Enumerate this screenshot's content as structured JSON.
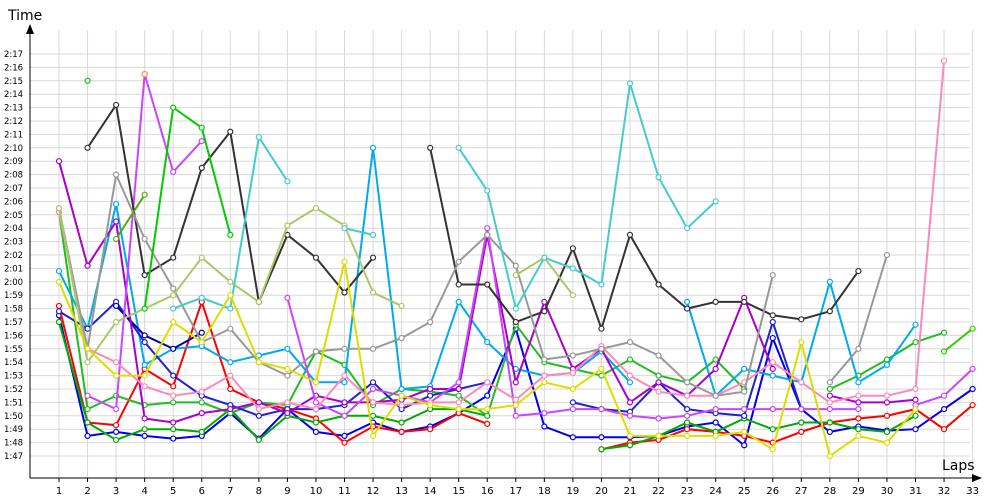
{
  "chart_data": {
    "type": "line",
    "title": "",
    "xlabel": "Laps",
    "ylabel": "Time",
    "x": [
      1,
      2,
      3,
      4,
      5,
      6,
      7,
      8,
      9,
      10,
      11,
      12,
      13,
      14,
      15,
      16,
      17,
      18,
      19,
      20,
      21,
      22,
      23,
      24,
      25,
      26,
      27,
      28,
      29,
      30,
      31,
      32,
      33
    ],
    "yticks": [
      "1:47",
      "1:48",
      "1:49",
      "1:50",
      "1:51",
      "1:52",
      "1:53",
      "1:54",
      "1:55",
      "1:56",
      "1:57",
      "1:58",
      "1:59",
      "2:00",
      "2:01",
      "2:02",
      "2:03",
      "2:04",
      "2:05",
      "2:06",
      "2:07",
      "2:08",
      "2:09",
      "2:10",
      "2:11",
      "2:12",
      "2:13",
      "2:14",
      "2:15",
      "2:16",
      "2:17"
    ],
    "y_unit": "seconds",
    "ylim": [
      106,
      138
    ],
    "grid": true,
    "legend": "none",
    "series": [
      {
        "color": "#0000ee",
        "values": [
          117.5,
          108.5,
          108.8,
          108.5,
          108.3,
          108.5,
          110.2,
          108.3,
          110.5,
          108.8,
          108.5,
          109.5,
          108.8,
          109.2,
          110.2,
          111.5,
          116.5,
          109.2,
          108.4,
          108.4,
          108.4,
          108.5,
          109.2,
          109.5,
          107.8,
          115.8,
          110.5,
          108.8,
          109.2,
          108.9,
          109.0,
          110.5,
          112.0
        ]
      },
      {
        "color": "#ff0000",
        "values": [
          118.2,
          109.5,
          109.3,
          113.5,
          112.2,
          118.5,
          112.0,
          111.0,
          110.5,
          109.8,
          108.0,
          109.2,
          108.8,
          109.0,
          110.2,
          109.4,
          null,
          null,
          null,
          107.5,
          108.0,
          108.2,
          109.0,
          108.8,
          108.5,
          108.0,
          108.8,
          109.5,
          109.8,
          110.0,
          110.5,
          109.0,
          110.8
        ]
      },
      {
        "color": "#00aa00",
        "values": [
          117.0,
          109.5,
          108.2,
          109.0,
          109.0,
          108.8,
          110.5,
          108.2,
          110.0,
          109.5,
          110.0,
          110.0,
          109.5,
          110.5,
          110.5,
          110.0,
          null,
          null,
          null,
          107.5,
          107.8,
          108.5,
          109.5,
          108.8,
          109.8,
          109.0,
          109.5,
          109.5,
          109.0,
          108.8,
          110.0,
          null,
          null
        ]
      },
      {
        "color": "#22bb22",
        "values": [
          125.2,
          110.5,
          111.5,
          110.8,
          111.0,
          111.0,
          110.2,
          111.0,
          110.8,
          114.8,
          113.8,
          110.8,
          112.0,
          111.8,
          111.5,
          110.0,
          116.8,
          114.0,
          113.5,
          113.0,
          114.2,
          113.0,
          112.5,
          114.2,
          112.0,
          null,
          null,
          112.0,
          113.0,
          114.2,
          115.5,
          116.2,
          null
        ]
      },
      {
        "color": "#33cc00",
        "values": [
          null,
          null,
          null,
          null,
          null,
          null,
          null,
          null,
          null,
          null,
          null,
          null,
          null,
          null,
          null,
          null,
          null,
          null,
          null,
          null,
          null,
          null,
          null,
          null,
          null,
          null,
          null,
          null,
          null,
          null,
          null,
          114.8,
          116.5
        ]
      },
      {
        "color": "#00aaee",
        "values": [
          120.8,
          116.5,
          125.8,
          113.8,
          115.0,
          115.2,
          114.0,
          114.5,
          115.0,
          112.5,
          112.5,
          130.0,
          112.0,
          112.2,
          118.5,
          115.5,
          113.5,
          113.0,
          113.2,
          114.8,
          112.5,
          null,
          118.5,
          111.5,
          113.5,
          113.0,
          112.5,
          120.0,
          112.5,
          113.8,
          116.8,
          null,
          null
        ]
      },
      {
        "color": "#2222cc",
        "values": [
          117.8,
          116.5,
          118.5,
          115.5,
          113.0,
          111.5,
          110.8,
          110.0,
          110.5,
          110.5,
          110.8,
          112.5,
          110.5,
          111.5,
          112.0,
          112.5,
          null,
          null,
          111.0,
          110.5,
          110.3,
          112.5,
          110.5,
          110.2,
          110.0,
          117.0,
          110.5,
          null,
          null,
          null,
          null,
          null,
          null
        ]
      },
      {
        "color": "#0000aa",
        "values": [
          null,
          null,
          118.2,
          116.0,
          115.0,
          116.2,
          null,
          null,
          null,
          null,
          null,
          null,
          null,
          null,
          null,
          null,
          null,
          null,
          null,
          null,
          null,
          null,
          null,
          null,
          null,
          null,
          null,
          null,
          null,
          null,
          null,
          null,
          null
        ]
      },
      {
        "color": "#aa00cc",
        "values": [
          129.0,
          121.2,
          124.5,
          109.8,
          109.5,
          110.2,
          110.5,
          111.0,
          110.2,
          111.5,
          111.0,
          111.0,
          111.2,
          112.0,
          112.0,
          123.5,
          112.5,
          118.5,
          113.5,
          115.0,
          111.0,
          112.5,
          111.5,
          113.5,
          118.8,
          113.5,
          null,
          111.5,
          111.0,
          111.0,
          111.2,
          null,
          null
        ]
      },
      {
        "color": "#cc44ff",
        "values": [
          null,
          111.5,
          110.5,
          135.5,
          128.2,
          130.5,
          null,
          null,
          118.8,
          111.0,
          110.0,
          112.0,
          111.5,
          111.0,
          112.5,
          124.0,
          110.0,
          110.2,
          110.5,
          110.5,
          110.0,
          109.8,
          110.0,
          110.5,
          110.5,
          110.5,
          110.5,
          110.5,
          110.5,
          null,
          110.8,
          111.5,
          113.5
        ]
      },
      {
        "color": "#ff88bb",
        "values": [
          125.2,
          115.0,
          114.0,
          112.2,
          111.5,
          111.8,
          113.0,
          110.5,
          111.0,
          110.5,
          113.0,
          111.0,
          110.8,
          111.0,
          111.0,
          112.5,
          111.2,
          113.0,
          113.2,
          115.2,
          113.0,
          111.8,
          111.5,
          111.5,
          112.5,
          114.0,
          112.5,
          111.0,
          111.5,
          111.5,
          112.0,
          136.5,
          null
        ]
      },
      {
        "color": "#333333",
        "values": [
          null,
          130.0,
          133.2,
          120.5,
          121.8,
          128.5,
          131.2,
          118.5,
          123.5,
          121.8,
          119.2,
          121.8,
          null,
          130.0,
          119.8,
          119.8,
          117.0,
          117.8,
          122.5,
          116.5,
          123.5,
          119.8,
          118.0,
          118.5,
          118.5,
          117.5,
          117.2,
          117.8,
          120.8,
          null,
          null,
          null,
          null
        ]
      },
      {
        "color": "#999999",
        "values": [
          125.5,
          115.0,
          128.0,
          123.2,
          119.5,
          115.5,
          116.5,
          114.0,
          113.0,
          114.8,
          115.0,
          115.0,
          115.8,
          117.0,
          121.5,
          123.5,
          121.2,
          114.2,
          114.5,
          115.0,
          115.5,
          114.5,
          112.5,
          111.5,
          111.8,
          120.5,
          null,
          112.5,
          115.0,
          122.0,
          null,
          null,
          null
        ]
      },
      {
        "color": "#aac866",
        "values": [
          125.5,
          114.0,
          117.0,
          118.0,
          119.0,
          121.8,
          120.0,
          118.5,
          124.2,
          125.5,
          124.2,
          119.2,
          118.2,
          null,
          null,
          null,
          120.5,
          121.8,
          119.0,
          null,
          null,
          null,
          null,
          null,
          null,
          null,
          null,
          null,
          null,
          null,
          null,
          null,
          null
        ]
      },
      {
        "color": "#44cccc",
        "values": [
          null,
          null,
          null,
          null,
          118.0,
          118.8,
          118.0,
          130.8,
          127.5,
          null,
          124.0,
          123.5,
          null,
          null,
          130.0,
          126.8,
          118.0,
          121.8,
          121.0,
          119.8,
          134.8,
          127.8,
          124.0,
          126.0,
          null,
          null,
          null,
          null,
          null,
          null,
          null,
          null,
          null
        ]
      },
      {
        "color": "#dddd00",
        "values": [
          120.0,
          115.0,
          113.0,
          113.0,
          117.0,
          115.5,
          119.0,
          114.0,
          113.5,
          112.5,
          121.5,
          108.5,
          111.5,
          110.8,
          110.5,
          110.5,
          110.8,
          112.5,
          112.0,
          113.5,
          108.5,
          108.5,
          108.5,
          108.5,
          108.8,
          107.5,
          115.5,
          107.0,
          108.5,
          108.0,
          110.5,
          null,
          null
        ]
      },
      {
        "color": "#00cc00",
        "values": [
          null,
          135.0,
          null,
          118.0,
          133.0,
          131.5,
          123.5,
          null,
          null,
          null,
          null,
          null,
          null,
          null,
          null,
          null,
          null,
          null,
          null,
          null,
          null,
          null,
          null,
          null,
          null,
          null,
          null,
          null,
          null,
          null,
          null,
          null,
          null
        ]
      },
      {
        "color": "#55aa11",
        "values": [
          null,
          null,
          123.2,
          126.5,
          null,
          null,
          null,
          null,
          null,
          null,
          null,
          null,
          null,
          null,
          null,
          null,
          null,
          null,
          null,
          null,
          null,
          null,
          null,
          null,
          null,
          null,
          null,
          null,
          null,
          null,
          null,
          null,
          null
        ]
      },
      {
        "color": "#ff9944",
        "values": [
          null,
          null,
          null,
          135.5,
          null,
          null,
          null,
          null,
          null,
          null,
          null,
          null,
          null,
          null,
          null,
          null,
          null,
          null,
          null,
          null,
          null,
          null,
          null,
          null,
          null,
          null,
          null,
          null,
          null,
          null,
          null,
          null,
          null
        ]
      }
    ]
  }
}
